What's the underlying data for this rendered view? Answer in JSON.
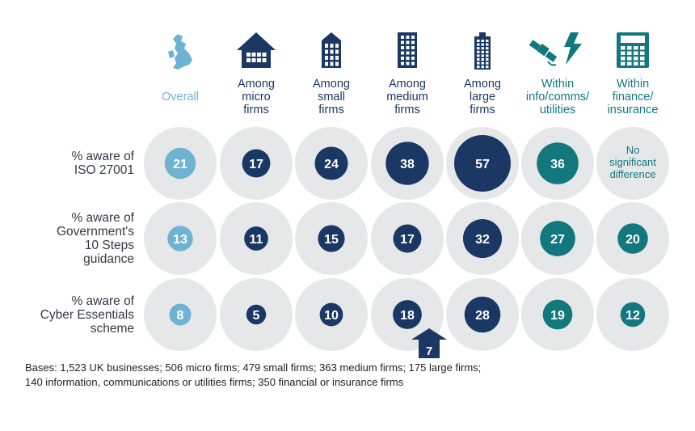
{
  "colors": {
    "light_blue": "#6fb3d2",
    "navy": "#1b3764",
    "teal": "#12787e",
    "bg_circle": "#e6e7e8",
    "row_text": "#333a45"
  },
  "chart_data": {
    "type": "table",
    "columns": [
      {
        "label": "Overall",
        "color": "light_blue",
        "icon": "uk-map-icon"
      },
      {
        "label": "Among\nmicro\nfirms",
        "color": "navy",
        "icon": "small-house-icon"
      },
      {
        "label": "Among\nsmall\nfirms",
        "color": "navy",
        "icon": "small-building-icon"
      },
      {
        "label": "Among\nmedium\nfirms",
        "color": "navy",
        "icon": "medium-building-icon"
      },
      {
        "label": "Among\nlarge\nfirms",
        "color": "navy",
        "icon": "large-building-icon"
      },
      {
        "label": "Within\ninfo/comms/\nutilities",
        "color": "teal",
        "icon": "satellite-lightning-icon"
      },
      {
        "label": "Within\nfinance/\ninsurance",
        "color": "teal",
        "icon": "calculator-icon"
      }
    ],
    "rows": [
      {
        "label": "% aware of\nISO 27001",
        "values": [
          21,
          17,
          24,
          38,
          57,
          36,
          null
        ],
        "null_text": "No\nsignificant\ndifference"
      },
      {
        "label": "% aware of\nGovernment's\n10 Steps\nguidance",
        "values": [
          13,
          11,
          15,
          17,
          32,
          27,
          20
        ]
      },
      {
        "label": "% aware of\nCyber Essentials\nscheme",
        "values": [
          8,
          5,
          10,
          18,
          28,
          19,
          12
        ]
      }
    ],
    "annotation": {
      "label": "7",
      "column": 3,
      "row": 2,
      "shape": "up-arrow"
    }
  },
  "bases": "Bases: 1,523 UK businesses; 506 micro firms; 479 small firms; 363 medium firms; 175 large firms;\n140 information, communications or utilities firms; 350 financial or insurance firms"
}
